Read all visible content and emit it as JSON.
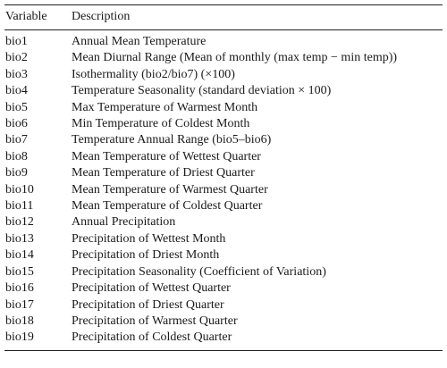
{
  "table": {
    "headers": {
      "variable": "Variable",
      "description": "Description"
    },
    "rows": [
      {
        "variable": "bio1",
        "description": "Annual Mean Temperature"
      },
      {
        "variable": "bio2",
        "description": "Mean Diurnal Range (Mean of monthly (max temp − min temp))"
      },
      {
        "variable": "bio3",
        "description": "Isothermality (bio2/bio7) (×100)"
      },
      {
        "variable": "bio4",
        "description": "Temperature Seasonality (standard deviation × 100)"
      },
      {
        "variable": "bio5",
        "description": "Max Temperature of Warmest Month"
      },
      {
        "variable": "bio6",
        "description": "Min Temperature of Coldest Month"
      },
      {
        "variable": "bio7",
        "description": "Temperature Annual Range (bio5–bio6)"
      },
      {
        "variable": "bio8",
        "description": "Mean Temperature of Wettest Quarter"
      },
      {
        "variable": "bio9",
        "description": "Mean Temperature of Driest Quarter"
      },
      {
        "variable": "bio10",
        "description": "Mean Temperature of Warmest Quarter"
      },
      {
        "variable": "bio11",
        "description": "Mean Temperature of Coldest Quarter"
      },
      {
        "variable": "bio12",
        "description": "Annual Precipitation"
      },
      {
        "variable": "bio13",
        "description": "Precipitation of Wettest Month"
      },
      {
        "variable": "bio14",
        "description": "Precipitation of Driest Month"
      },
      {
        "variable": "bio15",
        "description": "Precipitation Seasonality (Coefficient of Variation)"
      },
      {
        "variable": "bio16",
        "description": "Precipitation of Wettest Quarter"
      },
      {
        "variable": "bio17",
        "description": "Precipitation of Driest Quarter"
      },
      {
        "variable": "bio18",
        "description": "Precipitation of Warmest Quarter"
      },
      {
        "variable": "bio19",
        "description": "Precipitation of Coldest Quarter"
      }
    ]
  }
}
